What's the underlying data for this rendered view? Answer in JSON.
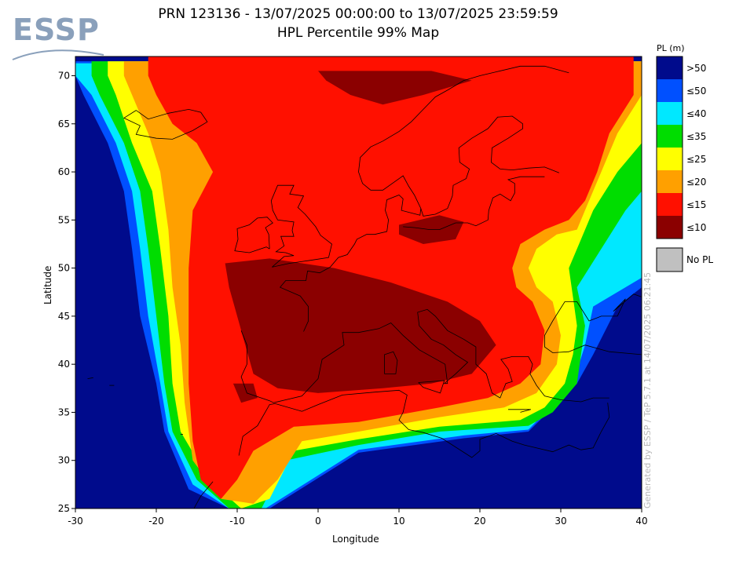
{
  "header": {
    "logo_text": "ESSP",
    "title_line1": "PRN 123136 - 13/07/2025 00:00:00 to 13/07/2025 23:59:59",
    "title_line2": "HPL Percentile 99% Map"
  },
  "axes": {
    "xlabel": "Longitude",
    "ylabel": "Latitude",
    "xlim": [
      -30,
      40
    ],
    "ylim": [
      25,
      72
    ],
    "xticks": [
      -30,
      -20,
      -10,
      0,
      10,
      20,
      30,
      40
    ],
    "yticks": [
      25,
      30,
      35,
      40,
      45,
      50,
      55,
      60,
      65,
      70
    ]
  },
  "legend": {
    "title": "PL (m)",
    "items": [
      {
        "label": ">50",
        "color": "#000b8c"
      },
      {
        "label": "≤50",
        "color": "#0050ff"
      },
      {
        "label": "≤40",
        "color": "#00e8ff"
      },
      {
        "label": "≤35",
        "color": "#00dd00"
      },
      {
        "label": "≤25",
        "color": "#ffff00"
      },
      {
        "label": "≤20",
        "color": "#ffa000"
      },
      {
        "label": "≤15",
        "color": "#ff1000"
      },
      {
        "label": "≤10",
        "color": "#8b0000"
      }
    ],
    "no_pl": {
      "label": "No PL",
      "color": "#c0c0c0"
    }
  },
  "footer_note": "Generated by ESSP / TeP 5.7.1 at 14/07/2025 06:21:45",
  "chart_data": {
    "type": "heatmap",
    "title": "PRN 123136 - 13/07/2025 00:00:00 to 13/07/2025 23:59:59 HPL Percentile 99% Map",
    "xlabel": "Longitude",
    "ylabel": "Latitude",
    "xlim": [
      -30,
      40
    ],
    "ylim": [
      25,
      72
    ],
    "colorbar_label": "PL (m)",
    "bins": [
      ">50",
      "≤50",
      "≤40",
      "≤35",
      "≤25",
      "≤20",
      "≤15",
      "≤10"
    ],
    "regions": [
      {
        "bin": ">50",
        "polygon": [
          [
            -30,
            72
          ],
          [
            40,
            72
          ],
          [
            40,
            25
          ],
          [
            -30,
            25
          ]
        ]
      },
      {
        "bin": "≤50",
        "polygon": [
          [
            -30,
            71.5
          ],
          [
            40,
            71.5
          ],
          [
            40,
            48
          ],
          [
            37,
            46
          ],
          [
            34,
            41
          ],
          [
            32,
            38
          ],
          [
            26,
            33
          ],
          [
            18,
            32.3
          ],
          [
            5,
            30.8
          ],
          [
            -6,
            25
          ],
          [
            -11,
            25
          ],
          [
            -16,
            27
          ],
          [
            -19,
            33
          ],
          [
            -20,
            38
          ],
          [
            -22,
            45
          ],
          [
            -23,
            52
          ],
          [
            -24,
            58
          ],
          [
            -26,
            63
          ],
          [
            -29,
            68
          ],
          [
            -30,
            70
          ]
        ]
      },
      {
        "bin": "≤40",
        "polygon": [
          [
            -30,
            71.3
          ],
          [
            40,
            71.3
          ],
          [
            40,
            49
          ],
          [
            34,
            46
          ],
          [
            33,
            42
          ],
          [
            31.5,
            38
          ],
          [
            26,
            33.2
          ],
          [
            18,
            32.6
          ],
          [
            5,
            31.1
          ],
          [
            -6.5,
            25
          ],
          [
            -11,
            25
          ],
          [
            -15.5,
            27.5
          ],
          [
            -18.5,
            33
          ],
          [
            -19.5,
            38
          ],
          [
            -21,
            45
          ],
          [
            -22,
            52
          ],
          [
            -23,
            58
          ],
          [
            -25,
            63
          ],
          [
            -28,
            68
          ],
          [
            -30,
            70
          ]
        ]
      },
      {
        "bin": "≤35",
        "polygon": [
          [
            -28,
            71.5
          ],
          [
            40,
            71.5
          ],
          [
            40,
            58
          ],
          [
            38,
            56
          ],
          [
            35,
            52
          ],
          [
            32,
            48
          ],
          [
            33,
            44
          ],
          [
            32.5,
            41
          ],
          [
            32,
            38
          ],
          [
            29,
            35
          ],
          [
            26,
            33.6
          ],
          [
            15,
            33
          ],
          [
            5,
            31.6
          ],
          [
            -4,
            30
          ],
          [
            -7,
            25
          ],
          [
            -11,
            25
          ],
          [
            -15,
            28
          ],
          [
            -18,
            33
          ],
          [
            -19,
            38
          ],
          [
            -20,
            45
          ],
          [
            -21,
            52
          ],
          [
            -22,
            58
          ],
          [
            -24,
            63
          ],
          [
            -27,
            68
          ],
          [
            -28,
            70
          ]
        ]
      },
      {
        "bin": "≤25",
        "polygon": [
          [
            -26,
            71.5
          ],
          [
            40,
            71.5
          ],
          [
            40,
            63
          ],
          [
            37,
            60
          ],
          [
            34,
            56
          ],
          [
            32.5,
            53
          ],
          [
            31,
            50
          ],
          [
            31.5,
            47
          ],
          [
            32,
            44
          ],
          [
            31.5,
            41
          ],
          [
            30.5,
            38
          ],
          [
            28,
            35.5
          ],
          [
            25,
            34.2
          ],
          [
            15,
            33.5
          ],
          [
            5,
            32.2
          ],
          [
            -3,
            31
          ],
          [
            -6,
            26
          ],
          [
            -9.5,
            25
          ],
          [
            -13.5,
            28
          ],
          [
            -17,
            33
          ],
          [
            -18,
            38
          ],
          [
            -18.5,
            45
          ],
          [
            -19.5,
            52
          ],
          [
            -20.5,
            58
          ],
          [
            -23,
            63
          ],
          [
            -25,
            68
          ],
          [
            -26,
            70
          ]
        ]
      },
      {
        "bin": "≤20",
        "polygon": [
          [
            -24,
            71.5
          ],
          [
            40,
            71.5
          ],
          [
            40,
            68
          ],
          [
            37,
            64
          ],
          [
            35,
            60
          ],
          [
            33.5,
            57
          ],
          [
            32,
            54
          ],
          [
            29.5,
            53.5
          ],
          [
            27,
            52
          ],
          [
            26,
            50
          ],
          [
            27,
            48
          ],
          [
            29,
            46.5
          ],
          [
            30,
            43
          ],
          [
            29.5,
            40
          ],
          [
            27,
            37
          ],
          [
            23,
            35.5
          ],
          [
            15,
            34.5
          ],
          [
            5,
            33
          ],
          [
            -2,
            32
          ],
          [
            -5,
            28
          ],
          [
            -8,
            25.5
          ],
          [
            -12,
            26
          ],
          [
            -15.5,
            30
          ],
          [
            -16.5,
            36
          ],
          [
            -17,
            42
          ],
          [
            -18,
            48
          ],
          [
            -18.5,
            54
          ],
          [
            -19.5,
            60
          ],
          [
            -21,
            64
          ],
          [
            -23,
            68
          ],
          [
            -24,
            70
          ]
        ]
      },
      {
        "bin": "≤15",
        "polygon": [
          [
            -21,
            72
          ],
          [
            39,
            72
          ],
          [
            39,
            68
          ],
          [
            36,
            64
          ],
          [
            34.5,
            60
          ],
          [
            33,
            57
          ],
          [
            31,
            55
          ],
          [
            28,
            54
          ],
          [
            25,
            52.5
          ],
          [
            24,
            50
          ],
          [
            24.5,
            48
          ],
          [
            26.5,
            46.5
          ],
          [
            28,
            43.5
          ],
          [
            27.5,
            40
          ],
          [
            25,
            38
          ],
          [
            21,
            36.5
          ],
          [
            15,
            35.5
          ],
          [
            5,
            34
          ],
          [
            -3,
            33.5
          ],
          [
            -8,
            31
          ],
          [
            -10,
            28
          ],
          [
            -12,
            26
          ],
          [
            -14.5,
            28
          ],
          [
            -15.5,
            32
          ],
          [
            -16,
            38
          ],
          [
            -16,
            44
          ],
          [
            -16,
            50
          ],
          [
            -15.5,
            56
          ],
          [
            -13,
            60
          ],
          [
            -15,
            63
          ],
          [
            -18,
            65
          ],
          [
            -20,
            68
          ],
          [
            -21,
            70
          ]
        ]
      },
      {
        "bin": "≤10",
        "polygon": [
          [
            -11.5,
            50.5
          ],
          [
            -6,
            51
          ],
          [
            2,
            50
          ],
          [
            9,
            48.5
          ],
          [
            16,
            46.5
          ],
          [
            20,
            44.5
          ],
          [
            22,
            42
          ],
          [
            19,
            39
          ],
          [
            14,
            38
          ],
          [
            8,
            37.5
          ],
          [
            0,
            37
          ],
          [
            -5,
            37.5
          ],
          [
            -8,
            39
          ],
          [
            -9,
            42
          ],
          [
            -10,
            45
          ],
          [
            -11,
            48
          ]
        ]
      },
      {
        "bin": "≤10",
        "polygon": [
          [
            0,
            70.5
          ],
          [
            14,
            70.5
          ],
          [
            19,
            69.5
          ],
          [
            13,
            68
          ],
          [
            8,
            67
          ],
          [
            4,
            68
          ],
          [
            1,
            69.5
          ]
        ]
      },
      {
        "bin": "≤10",
        "polygon": [
          [
            10,
            54.5
          ],
          [
            15,
            55.5
          ],
          [
            18,
            54.8
          ],
          [
            17,
            53
          ],
          [
            13,
            52.5
          ],
          [
            10,
            53.5
          ]
        ]
      },
      {
        "bin": "≤10",
        "polygon": [
          [
            -10.5,
            38
          ],
          [
            -8,
            38
          ],
          [
            -7.5,
            36.5
          ],
          [
            -9.5,
            36
          ]
        ]
      }
    ]
  }
}
